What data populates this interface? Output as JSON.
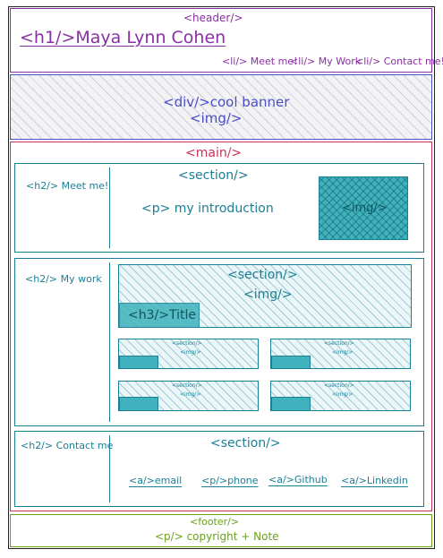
{
  "header": {
    "tag": "<header/>",
    "title": "<h1/>Maya Lynn Cohen",
    "nav": [
      "<li/> Meet me!",
      "<li/> My Work",
      "<li/> Contact me!"
    ]
  },
  "banner": {
    "line1": "<div/>cool banner",
    "line2": "<img/>"
  },
  "main": {
    "tag": "<main/>",
    "meet": {
      "heading": "<h2/> Meet me!",
      "section": "<section/>",
      "intro": "<p> my introduction",
      "img": "<img/>"
    },
    "work": {
      "heading": "<h2/> My work",
      "featured_section": "<section/>",
      "featured_img": "<img/>",
      "featured_title": "<h3/>Title",
      "small_section": "<section/>",
      "small_img": "<img/>"
    },
    "contact": {
      "heading": "<h2/> Contact me",
      "section": "<section/>",
      "links": [
        "<a/>email",
        "<p/>phone",
        "<a/>Github",
        "<a/>Linkedin"
      ]
    }
  },
  "footer": {
    "tag": "<footer/>",
    "text": "<p/> copyright + Note"
  },
  "colors": {
    "header": "#8b2fa5",
    "banner": "#4a4fc4",
    "main": "#c8325a",
    "section": "#1b7f95",
    "footer": "#6aa21c"
  }
}
